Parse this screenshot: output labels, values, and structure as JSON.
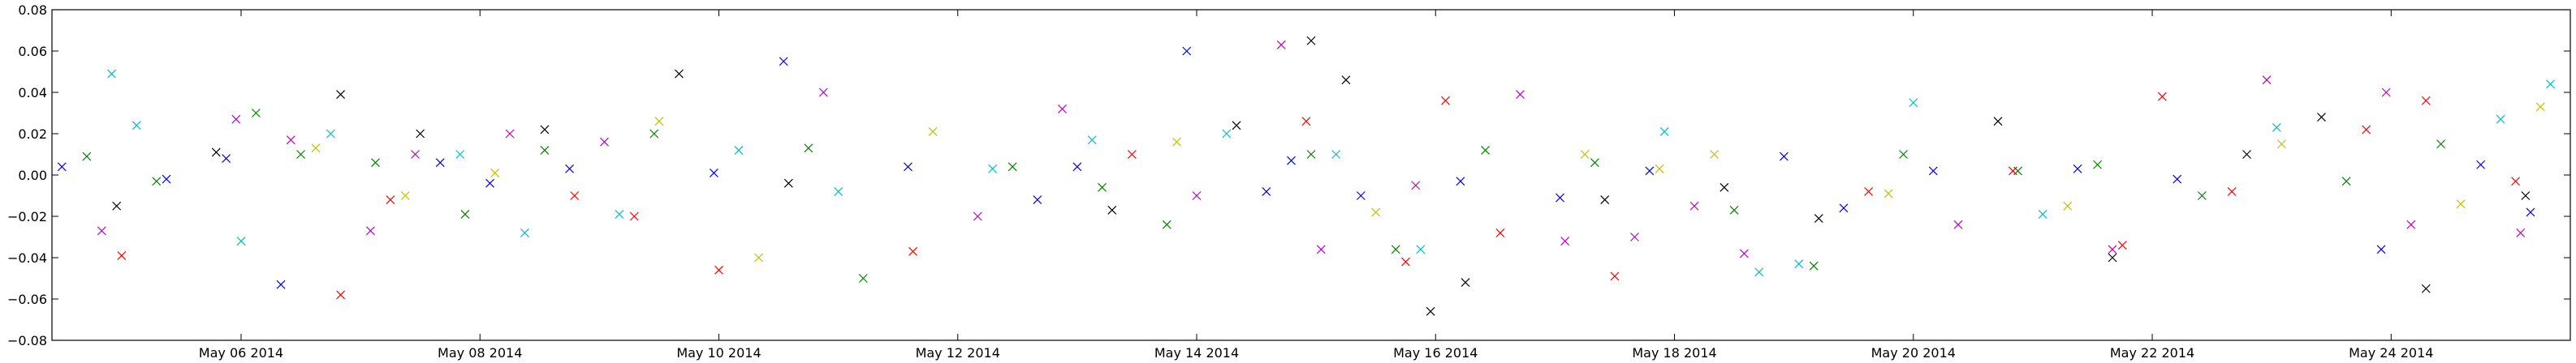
{
  "chart_data": {
    "type": "scatter",
    "marker": "x",
    "title": "",
    "xlabel": "",
    "ylabel": "",
    "xlim": [
      "2014-05-04T10:00",
      "2014-05-25T12:00"
    ],
    "ylim": [
      -0.08,
      0.08
    ],
    "grid": false,
    "legend": "none",
    "x_ticks": [
      {
        "value": "2014-05-06",
        "label": "May 06 2014"
      },
      {
        "value": "2014-05-08",
        "label": "May 08 2014"
      },
      {
        "value": "2014-05-10",
        "label": "May 10 2014"
      },
      {
        "value": "2014-05-12",
        "label": "May 12 2014"
      },
      {
        "value": "2014-05-14",
        "label": "May 14 2014"
      },
      {
        "value": "2014-05-16",
        "label": "May 16 2014"
      },
      {
        "value": "2014-05-18",
        "label": "May 18 2014"
      },
      {
        "value": "2014-05-20",
        "label": "May 20 2014"
      },
      {
        "value": "2014-05-22",
        "label": "May 22 2014"
      },
      {
        "value": "2014-05-24",
        "label": "May 24 2014"
      }
    ],
    "y_ticks": [
      {
        "value": 0.08,
        "label": "0.08"
      },
      {
        "value": 0.06,
        "label": "0.06"
      },
      {
        "value": 0.04,
        "label": "0.04"
      },
      {
        "value": 0.02,
        "label": "0.02"
      },
      {
        "value": 0.0,
        "label": "0.00"
      },
      {
        "value": -0.02,
        "label": "−0.02"
      },
      {
        "value": -0.04,
        "label": "−0.04"
      },
      {
        "value": -0.06,
        "label": "−0.06"
      },
      {
        "value": -0.08,
        "label": "−0.08"
      }
    ],
    "colors": [
      "#0000ff",
      "#008000",
      "#ff0000",
      "#00bfbf",
      "#bf00bf",
      "#bfbf00",
      "#000000"
    ],
    "series": [
      {
        "color": "#0000ff",
        "x": [
          "2014-05-04T12:00",
          "2014-05-05T09:00",
          "2014-05-05T21:00",
          "2014-05-06T08:00",
          "2014-05-07T16:00",
          "2014-05-08T02:00",
          "2014-05-08T18:00",
          "2014-05-09T23:00",
          "2014-05-10T13:00",
          "2014-05-11T14:00",
          "2014-05-12T16:00",
          "2014-05-13T00:00",
          "2014-05-13T22:00",
          "2014-05-14T14:00",
          "2014-05-14T19:00",
          "2014-05-15T09:00",
          "2014-05-16T05:00",
          "2014-05-17T01:00",
          "2014-05-17T19:00",
          "2014-05-18T22:00",
          "2014-05-19T10:00",
          "2014-05-20T04:00",
          "2014-05-21T09:00",
          "2014-05-22T05:00",
          "2014-05-23T22:00",
          "2014-05-24T18:00",
          "2014-05-25T04:00"
        ],
        "y": [
          0.004,
          -0.002,
          0.008,
          -0.053,
          0.006,
          -0.004,
          0.003,
          0.001,
          0.055,
          0.004,
          -0.012,
          0.004,
          0.06,
          -0.008,
          0.007,
          -0.01,
          -0.003,
          -0.011,
          0.002,
          0.009,
          -0.016,
          0.002,
          0.003,
          -0.002,
          -0.036,
          0.005,
          -0.018
        ]
      },
      {
        "color": "#008000",
        "x": [
          "2014-05-04T17:00",
          "2014-05-05T07:00",
          "2014-05-06T03:00",
          "2014-05-06T12:00",
          "2014-05-07T03:00",
          "2014-05-07T21:00",
          "2014-05-08T13:00",
          "2014-05-09T11:00",
          "2014-05-10T18:00",
          "2014-05-11T05:00",
          "2014-05-12T11:00",
          "2014-05-13T05:00",
          "2014-05-13T18:00",
          "2014-05-14T23:00",
          "2014-05-15T16:00",
          "2014-05-16T10:00",
          "2014-05-17T08:00",
          "2014-05-18T12:00",
          "2014-05-19T04:00",
          "2014-05-19T22:00",
          "2014-05-20T21:00",
          "2014-05-21T13:00",
          "2014-05-22T10:00",
          "2014-05-23T15:00",
          "2014-05-24T10:00"
        ],
        "y": [
          0.009,
          -0.003,
          0.03,
          0.01,
          0.006,
          -0.019,
          0.012,
          0.02,
          0.013,
          -0.05,
          0.004,
          -0.006,
          -0.024,
          0.01,
          -0.036,
          0.012,
          0.006,
          -0.017,
          -0.044,
          0.01,
          0.002,
          0.005,
          -0.01,
          -0.003,
          0.015
        ]
      },
      {
        "color": "#ff0000",
        "x": [
          "2014-05-05T00:00",
          "2014-05-06T20:00",
          "2014-05-07T06:00",
          "2014-05-08T19:00",
          "2014-05-09T07:00",
          "2014-05-10T00:00",
          "2014-05-11T15:00",
          "2014-05-13T11:00",
          "2014-05-14T22:00",
          "2014-05-15T18:00",
          "2014-05-16T02:00",
          "2014-05-16T13:00",
          "2014-05-17T12:00",
          "2014-05-19T15:00",
          "2014-05-20T20:00",
          "2014-05-21T18:00",
          "2014-05-22T02:00",
          "2014-05-22T16:00",
          "2014-05-23T19:00",
          "2014-05-24T07:00",
          "2014-05-25T01:00"
        ],
        "y": [
          -0.039,
          -0.058,
          -0.012,
          -0.01,
          -0.02,
          -0.046,
          -0.037,
          0.01,
          0.026,
          -0.042,
          0.036,
          -0.028,
          -0.049,
          -0.008,
          0.002,
          -0.034,
          0.038,
          -0.008,
          0.022,
          0.036,
          -0.003
        ]
      },
      {
        "color": "#00bfbf",
        "x": [
          "2014-05-04T22:00",
          "2014-05-05T03:00",
          "2014-05-06T00:00",
          "2014-05-06T18:00",
          "2014-05-07T20:00",
          "2014-05-08T09:00",
          "2014-05-09T04:00",
          "2014-05-10T04:00",
          "2014-05-11T00:00",
          "2014-05-12T07:00",
          "2014-05-13T03:00",
          "2014-05-14T06:00",
          "2014-05-15T04:00",
          "2014-05-15T21:00",
          "2014-05-17T22:00",
          "2014-05-18T17:00",
          "2014-05-19T01:00",
          "2014-05-20T00:00",
          "2014-05-21T02:00",
          "2014-05-23T01:00",
          "2014-05-24T22:00",
          "2014-05-25T08:00"
        ],
        "y": [
          0.049,
          0.024,
          -0.032,
          0.02,
          0.01,
          -0.028,
          -0.019,
          0.012,
          -0.008,
          0.003,
          0.017,
          0.02,
          0.01,
          -0.036,
          0.021,
          -0.047,
          -0.043,
          0.035,
          -0.019,
          0.023,
          0.027,
          0.044
        ]
      },
      {
        "color": "#bf00bf",
        "x": [
          "2014-05-04T20:00",
          "2014-05-05T23:00",
          "2014-05-06T10:00",
          "2014-05-07T02:00",
          "2014-05-07T11:00",
          "2014-05-08T06:00",
          "2014-05-09T01:00",
          "2014-05-10T21:00",
          "2014-05-12T04:00",
          "2014-05-12T21:00",
          "2014-05-14T00:00",
          "2014-05-14T17:00",
          "2014-05-15T01:00",
          "2014-05-15T20:00",
          "2014-05-16T17:00",
          "2014-05-17T02:00",
          "2014-05-17T16:00",
          "2014-05-18T04:00",
          "2014-05-18T14:00",
          "2014-05-20T09:00",
          "2014-05-21T16:00",
          "2014-05-22T23:00",
          "2014-05-23T23:00",
          "2014-05-24T04:00",
          "2014-05-25T02:00"
        ],
        "y": [
          -0.027,
          0.027,
          0.017,
          -0.027,
          0.01,
          0.02,
          0.016,
          0.04,
          -0.02,
          0.032,
          -0.01,
          0.063,
          -0.036,
          -0.005,
          0.039,
          -0.032,
          -0.03,
          -0.015,
          -0.038,
          -0.024,
          -0.036,
          0.046,
          0.04,
          -0.024,
          -0.028
        ]
      },
      {
        "color": "#bfbf00",
        "x": [
          "2014-05-06T15:00",
          "2014-05-07T09:00",
          "2014-05-08T03:00",
          "2014-05-09T12:00",
          "2014-05-10T08:00",
          "2014-05-11T19:00",
          "2014-05-13T20:00",
          "2014-05-15T12:00",
          "2014-05-17T06:00",
          "2014-05-17T21:00",
          "2014-05-18T08:00",
          "2014-05-19T19:00",
          "2014-05-21T07:00",
          "2014-05-23T02:00",
          "2014-05-24T14:00",
          "2014-05-25T06:00"
        ],
        "y": [
          0.013,
          -0.01,
          0.001,
          0.026,
          -0.04,
          0.021,
          0.016,
          -0.018,
          0.01,
          0.003,
          0.01,
          -0.009,
          -0.015,
          0.015,
          -0.014,
          0.033
        ]
      },
      {
        "color": "#000000",
        "x": [
          "2014-05-04T23:00",
          "2014-05-05T19:00",
          "2014-05-06T20:00",
          "2014-05-07T12:00",
          "2014-05-08T13:00",
          "2014-05-09T16:00",
          "2014-05-10T14:00",
          "2014-05-13T07:00",
          "2014-05-14T08:00",
          "2014-05-14T23:00",
          "2014-05-15T06:00",
          "2014-05-15T23:00",
          "2014-05-16T06:00",
          "2014-05-17T10:00",
          "2014-05-18T10:00",
          "2014-05-19T05:00",
          "2014-05-20T17:00",
          "2014-05-21T16:00",
          "2014-05-22T19:00",
          "2014-05-23T10:00",
          "2014-05-24T07:00",
          "2014-05-25T03:00"
        ],
        "y": [
          -0.015,
          0.011,
          0.039,
          0.02,
          0.022,
          0.049,
          -0.004,
          -0.017,
          0.024,
          0.065,
          0.046,
          -0.066,
          -0.052,
          -0.012,
          -0.006,
          -0.021,
          0.026,
          -0.04,
          0.01,
          0.028,
          -0.055,
          -0.01
        ]
      }
    ]
  }
}
